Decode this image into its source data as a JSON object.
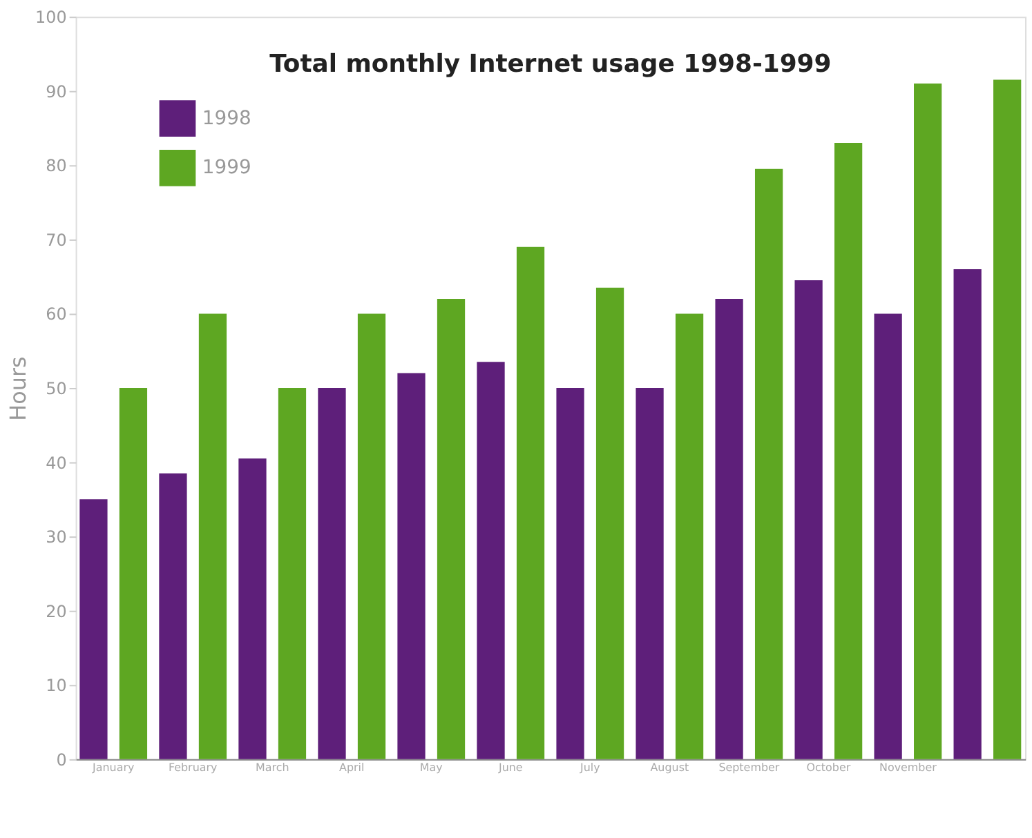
{
  "chart_data": {
    "type": "bar",
    "title": "Total monthly Internet usage 1998-1999",
    "ylabel": "Hours",
    "categories": [
      "January",
      "February",
      "March",
      "April",
      "May",
      "June",
      "July",
      "August",
      "September",
      "October",
      "November",
      null
    ],
    "series": [
      {
        "name": "1998",
        "color": "#5e1f7a",
        "values": [
          35,
          38.5,
          40.5,
          50,
          52,
          53.5,
          50,
          50,
          62,
          64.5,
          60,
          66
        ]
      },
      {
        "name": "1999",
        "color": "#5ea722",
        "values": [
          50,
          60,
          50,
          60,
          62,
          69,
          63.5,
          60,
          79.5,
          83,
          91,
          91.5
        ]
      }
    ],
    "ylim": [
      0,
      100
    ],
    "yticks": [
      0,
      10,
      20,
      30,
      40,
      50,
      60,
      70,
      80,
      90,
      100
    ],
    "grid": false,
    "legend": "top left"
  }
}
